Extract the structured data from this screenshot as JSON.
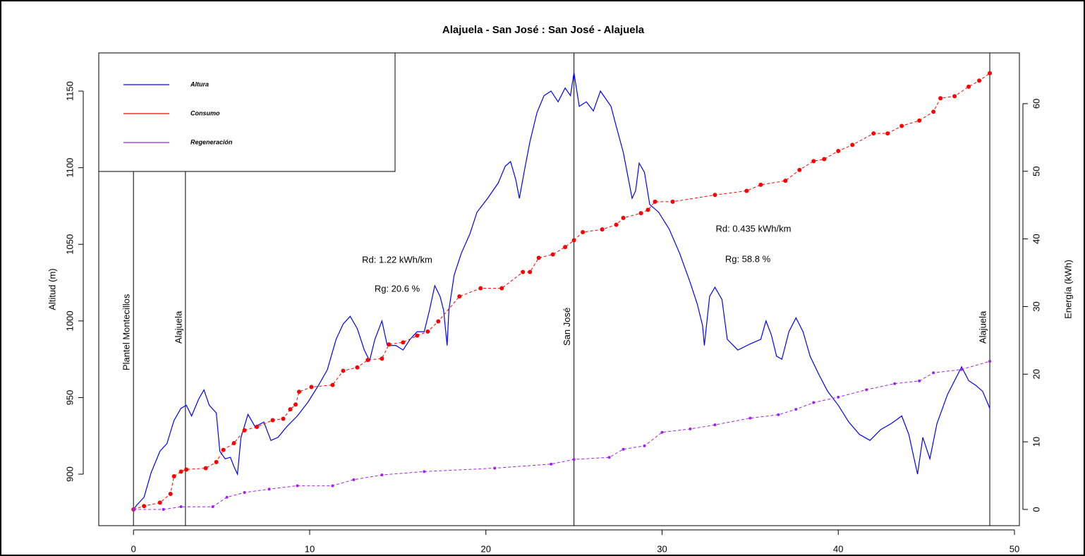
{
  "chart_data": {
    "type": "line",
    "title": "Alajuela - San José : San José - Alajuela",
    "y_label": "Altitud (m)",
    "y2_label": "Energía (kWh)",
    "xlim": [
      -1.97,
      50.28
    ],
    "ylim": [
      866.4,
      1174.9
    ],
    "y2lim": [
      -2.4,
      67.5
    ],
    "xticks": [
      0,
      10,
      20,
      30,
      40,
      50
    ],
    "yticks": [
      900,
      950,
      1000,
      1050,
      1100,
      1150
    ],
    "y2ticks": [
      0,
      10,
      20,
      30,
      40,
      50,
      60
    ],
    "legend": "top-left",
    "markers": [
      {
        "x": 0,
        "label": "Plantel Montecillos"
      },
      {
        "x": 2.95,
        "label": "Alajuela"
      },
      {
        "x": 25,
        "label": "San José"
      },
      {
        "x": 48.6,
        "label": "Alajuela"
      }
    ],
    "annotations": [
      "Rd: 1.22 kWh/km",
      "Rg: 20.6 %",
      "Rd: 0.435 kWh/km",
      "Rg: 58.8 %"
    ],
    "series": [
      {
        "name": "Altura",
        "color": "#0000ff",
        "style": "line",
        "x": [
          0,
          0.2,
          0.6,
          1.0,
          1.5,
          1.9,
          2.3,
          2.7,
          3.0,
          3.3,
          3.7,
          4.0,
          4.3,
          4.7,
          4.9,
          5.2,
          5.5,
          5.7,
          5.9,
          6.1,
          6.5,
          6.9,
          7.4,
          7.8,
          8.2,
          8.7,
          9.3,
          9.9,
          10.5,
          11.0,
          11.5,
          11.9,
          12.3,
          12.7,
          13.1,
          13.4,
          13.7,
          14.1,
          14.4,
          14.9,
          15.3,
          15.7,
          16.1,
          16.5,
          16.8,
          17.1,
          17.4,
          17.6,
          17.8,
          17.9,
          18.2,
          18.6,
          19.1,
          19.5,
          20.1,
          20.7,
          21.1,
          21.4,
          21.7,
          21.9,
          22.2,
          22.5,
          22.9,
          23.3,
          23.7,
          24.1,
          24.5,
          24.8,
          25.0,
          25.3,
          25.7,
          26.1,
          26.5,
          26.8,
          27.1,
          27.4,
          27.8,
          28.1,
          28.3,
          28.5,
          28.7,
          29.0,
          29.3,
          29.8,
          30.4,
          31.0,
          31.6,
          32.0,
          32.3,
          32.4,
          32.7,
          33.0,
          33.4,
          33.7,
          34.3,
          35.0,
          35.6,
          35.9,
          36.2,
          36.5,
          36.8,
          37.2,
          37.6,
          38.0,
          38.4,
          38.9,
          39.4,
          40.0,
          40.6,
          41.2,
          41.8,
          42.4,
          43.0,
          43.6,
          44.0,
          44.5,
          44.8,
          45.2,
          45.6,
          46.2,
          47.0,
          47.4,
          47.8,
          48.2,
          48.6
        ],
        "values": [
          877,
          880,
          885,
          901,
          915,
          920,
          935,
          943,
          945,
          938,
          949,
          955,
          945,
          940,
          915,
          910,
          911,
          905,
          900,
          924,
          939,
          931,
          934,
          922,
          924,
          931,
          938,
          947,
          958,
          968,
          988,
          998,
          1003,
          995,
          981,
          974,
          988,
          1000,
          984,
          984,
          981,
          988,
          993,
          993,
          1007,
          1023,
          1016,
          1007,
          984,
          1007,
          1030,
          1044,
          1057,
          1071,
          1080,
          1090,
          1101,
          1104,
          1092,
          1080,
          1099,
          1117,
          1136,
          1147,
          1150,
          1143,
          1152,
          1147,
          1162,
          1140,
          1143,
          1137,
          1150,
          1145,
          1140,
          1127,
          1110,
          1092,
          1080,
          1085,
          1103,
          1097,
          1076,
          1071,
          1060,
          1044,
          1025,
          1011,
          997,
          984,
          1016,
          1022,
          1014,
          988,
          981,
          985,
          988,
          1000,
          991,
          977,
          975,
          993,
          1002,
          993,
          977,
          965,
          954,
          945,
          934,
          926,
          922,
          929,
          933,
          938,
          926,
          900,
          924,
          910,
          933,
          952,
          970,
          961,
          958,
          954,
          943
        ]
      },
      {
        "name": "Consumo",
        "color": "#ff0000",
        "style": "points",
        "axis": "y2",
        "x": [
          0,
          0.6,
          1.5,
          2.1,
          2.3,
          2.7,
          3.0,
          4.1,
          4.7,
          5.1,
          5.7,
          6.3,
          7.0,
          7.9,
          8.5,
          8.9,
          9.2,
          9.4,
          10.1,
          11.3,
          11.9,
          12.7,
          13.3,
          14.1,
          14.5,
          15.3,
          16.1,
          16.7,
          17.3,
          18.5,
          19.7,
          20.9,
          22.1,
          22.5,
          23.0,
          23.8,
          24.5,
          25.0,
          25.5,
          26.6,
          27.4,
          27.8,
          28.8,
          29.2,
          29.6,
          30.6,
          33.0,
          34.8,
          35.6,
          37.0,
          37.8,
          38.6,
          39.2,
          40.0,
          40.8,
          42.0,
          42.8,
          43.6,
          44.6,
          45.4,
          45.8,
          46.6,
          47.4,
          48.0,
          48.6
        ],
        "values": [
          0,
          0.5,
          1.0,
          2.3,
          4.9,
          5.6,
          5.9,
          6.1,
          7.0,
          8.8,
          9.8,
          11.7,
          12.2,
          13.2,
          13.4,
          14.8,
          15.5,
          17.4,
          18.1,
          18.4,
          20.5,
          21.0,
          22.1,
          22.3,
          24.4,
          24.7,
          25.7,
          26.3,
          27.8,
          31.5,
          32.7,
          32.7,
          35.1,
          35.1,
          37.2,
          37.7,
          38.8,
          39.8,
          41.0,
          41.4,
          42.1,
          43.1,
          43.8,
          44.3,
          45.5,
          45.5,
          46.5,
          47.1,
          48.0,
          48.6,
          50.2,
          51.5,
          51.8,
          53.0,
          53.9,
          55.6,
          55.6,
          56.7,
          57.5,
          58.8,
          60.8,
          61.1,
          62.5,
          63.4,
          64.5
        ]
      },
      {
        "name": "Regeneración",
        "color": "#a020f0",
        "style": "points",
        "axis": "y2",
        "x": [
          0,
          1.7,
          2.7,
          4.5,
          5.3,
          6.3,
          7.7,
          9.3,
          11.3,
          12.5,
          14.1,
          16.5,
          20.5,
          23.7,
          25.0,
          27.0,
          27.8,
          29.0,
          30.0,
          31.6,
          33.0,
          35.0,
          36.6,
          37.6,
          38.6,
          40.0,
          41.6,
          43.2,
          44.6,
          45.4,
          47.0,
          48.6
        ],
        "values": [
          0,
          0,
          0.4,
          0.4,
          1.8,
          2.5,
          3.0,
          3.5,
          3.5,
          4.4,
          5.1,
          5.6,
          6.1,
          6.7,
          7.4,
          7.7,
          8.9,
          9.4,
          11.4,
          11.9,
          12.5,
          13.5,
          14.0,
          14.8,
          15.8,
          16.6,
          17.7,
          18.6,
          19.0,
          20.2,
          20.7,
          21.9
        ]
      }
    ]
  }
}
